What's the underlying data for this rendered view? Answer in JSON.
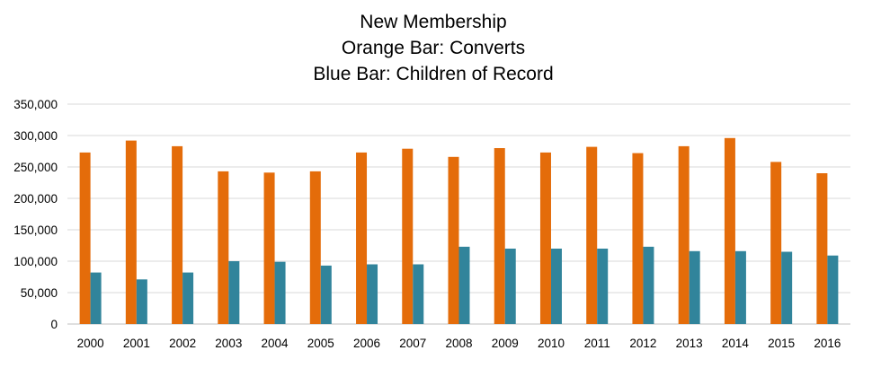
{
  "chart_data": {
    "type": "bar",
    "title": "New Membership",
    "subtitle_lines": [
      "Orange Bar: Converts",
      "Blue Bar: Children of Record"
    ],
    "xlabel": "",
    "ylabel": "",
    "ylim": [
      0,
      350000
    ],
    "y_ticks": [
      0,
      50000,
      100000,
      150000,
      200000,
      250000,
      300000,
      350000
    ],
    "y_tick_labels": [
      "0",
      "50,000",
      "100,000",
      "150,000",
      "200,000",
      "250,000",
      "300,000",
      "350,000"
    ],
    "grid": true,
    "legend": "none",
    "categories": [
      "2000",
      "2001",
      "2002",
      "2003",
      "2004",
      "2005",
      "2006",
      "2007",
      "2008",
      "2009",
      "2010",
      "2011",
      "2012",
      "2013",
      "2014",
      "2015",
      "2016"
    ],
    "series": [
      {
        "color": "#E46C0A",
        "values": [
          273000,
          292000,
          283000,
          243000,
          241000,
          243000,
          273000,
          279000,
          266000,
          280000,
          273000,
          282000,
          272000,
          283000,
          296000,
          258000,
          240000
        ]
      },
      {
        "color": "#31849B",
        "values": [
          82000,
          71000,
          82000,
          100000,
          99000,
          93000,
          95000,
          95000,
          123000,
          120000,
          120000,
          120000,
          123000,
          116000,
          116000,
          115000,
          109000
        ]
      }
    ],
    "gridline_color": "#D9D9D9",
    "axis_color": "#BFBFBF"
  }
}
